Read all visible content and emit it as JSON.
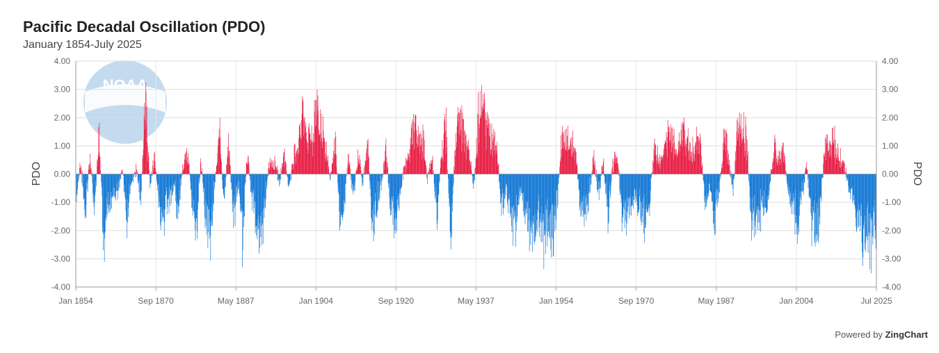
{
  "chart_data": {
    "type": "bar",
    "title": "Pacific Decadal Oscillation (PDO)",
    "subtitle": "January 1854-July 2025",
    "ylabel": "PDO",
    "ylabel_right": "PDO",
    "ylim": [
      -4,
      4
    ],
    "y_ticks": [
      "4.00",
      "3.00",
      "2.00",
      "1.00",
      "0.00",
      "-1.00",
      "-2.00",
      "-3.00",
      "-4.00"
    ],
    "x_tick_labels": [
      "Jan 1854",
      "Sep 1870",
      "May 1887",
      "Jan 1904",
      "Sep 1920",
      "May 1937",
      "Jan 1954",
      "Sep 1970",
      "May 1987",
      "Jan 2004",
      "Jul 2025"
    ],
    "x_start": "1854-01",
    "x_end": "2025-07",
    "frequency": "monthly",
    "colors": {
      "positive": "#e8244a",
      "negative": "#1a7cd6"
    },
    "grid": true,
    "legend": "none",
    "series": [
      {
        "values_by_decade_approx": [
          {
            "period": "1854-1860",
            "values": [
              -1.2,
              0.6,
              -2.2,
              1.1,
              -1.8,
              2.3,
              -3.6,
              -1.5,
              -0.8
            ]
          },
          {
            "period": "1861-1870",
            "values": [
              -1.0,
              0.2,
              -2.3,
              -0.5,
              0.3,
              -1.2,
              3.8,
              -0.6,
              0.9,
              -1.8
            ]
          },
          {
            "period": "1871-1880",
            "values": [
              -2.1,
              -1.5,
              -0.7,
              -1.9,
              0.2,
              1.5,
              -1.3,
              -3.1,
              0.8,
              -2.0
            ]
          },
          {
            "period": "1881-1890",
            "values": [
              -3.1,
              -0.6,
              2.5,
              -1.6,
              1.7,
              -2.5,
              -0.4,
              -3.4,
              1.4,
              -1.1
            ]
          },
          {
            "period": "1891-1900",
            "values": [
              -2.8,
              -3.3,
              -1.0,
              0.9,
              0.5,
              -0.4,
              1.2,
              -0.7,
              0.8,
              1.3
            ]
          },
          {
            "period": "1901-1910",
            "values": [
              3.0,
              1.4,
              2.2,
              3.1,
              2.4,
              1.5,
              -0.3,
              1.9,
              -2.3,
              -1.3
            ]
          },
          {
            "period": "1911-1920",
            "values": [
              0.9,
              -1.2,
              1.2,
              -0.6,
              1.6,
              -2.5,
              -1.8,
              -0.4,
              1.3,
              -1.5
            ]
          },
          {
            "period": "1921-1930",
            "values": [
              -2.4,
              -1.1,
              0.5,
              1.0,
              2.5,
              1.6,
              2.0,
              -0.3,
              1.0,
              -2.2
            ]
          },
          {
            "period": "1931-1940",
            "values": [
              1.1,
              2.6,
              -3.3,
              1.6,
              2.8,
              1.7,
              1.0,
              -0.8,
              3.0,
              3.2
            ]
          },
          {
            "period": "1941-1950",
            "values": [
              2.2,
              1.6,
              1.3,
              -1.8,
              -1.0,
              -2.2,
              -2.6,
              -0.8,
              -1.6,
              -2.9
            ]
          },
          {
            "period": "1951-1960",
            "values": [
              -3.2,
              -1.8,
              -3.6,
              -2.5,
              -3.3,
              -1.6,
              1.8,
              1.7,
              1.5,
              1.0
            ]
          },
          {
            "period": "1961-1970",
            "values": [
              -1.4,
              -1.8,
              -1.0,
              0.9,
              -1.1,
              0.7,
              -2.3,
              0.5,
              0.9,
              -1.8
            ]
          },
          {
            "period": "1971-1980",
            "values": [
              -2.1,
              -1.6,
              -1.0,
              -2.2,
              -2.4,
              -1.5,
              1.4,
              0.7,
              1.1,
              2.0
            ]
          },
          {
            "period": "1981-1990",
            "values": [
              1.8,
              1.0,
              2.4,
              1.7,
              1.2,
              2.0,
              1.5,
              -1.3,
              -0.7,
              -2.3
            ]
          },
          {
            "period": "1991-2000",
            "values": [
              -1.0,
              1.9,
              1.2,
              -0.8,
              2.1,
              2.5,
              1.8,
              -2.5,
              -2.2,
              -1.9
            ]
          },
          {
            "period": "2001-2010",
            "values": [
              -1.8,
              -0.6,
              1.5,
              0.9,
              1.3,
              -1.0,
              -1.7,
              -2.5,
              -1.2,
              0.4
            ]
          },
          {
            "period": "2011-2020",
            "values": [
              -2.5,
              -3.0,
              -1.8,
              1.8,
              1.5,
              1.7,
              0.8,
              0.5,
              -0.6,
              -1.2
            ]
          },
          {
            "period": "2021-2025",
            "values": [
              -2.4,
              -3.1,
              -2.9,
              -3.8,
              -2.6
            ]
          }
        ]
      }
    ]
  },
  "credit": {
    "prefix": "Powered by",
    "brand": "ZingChart"
  },
  "watermark": "NOAA"
}
